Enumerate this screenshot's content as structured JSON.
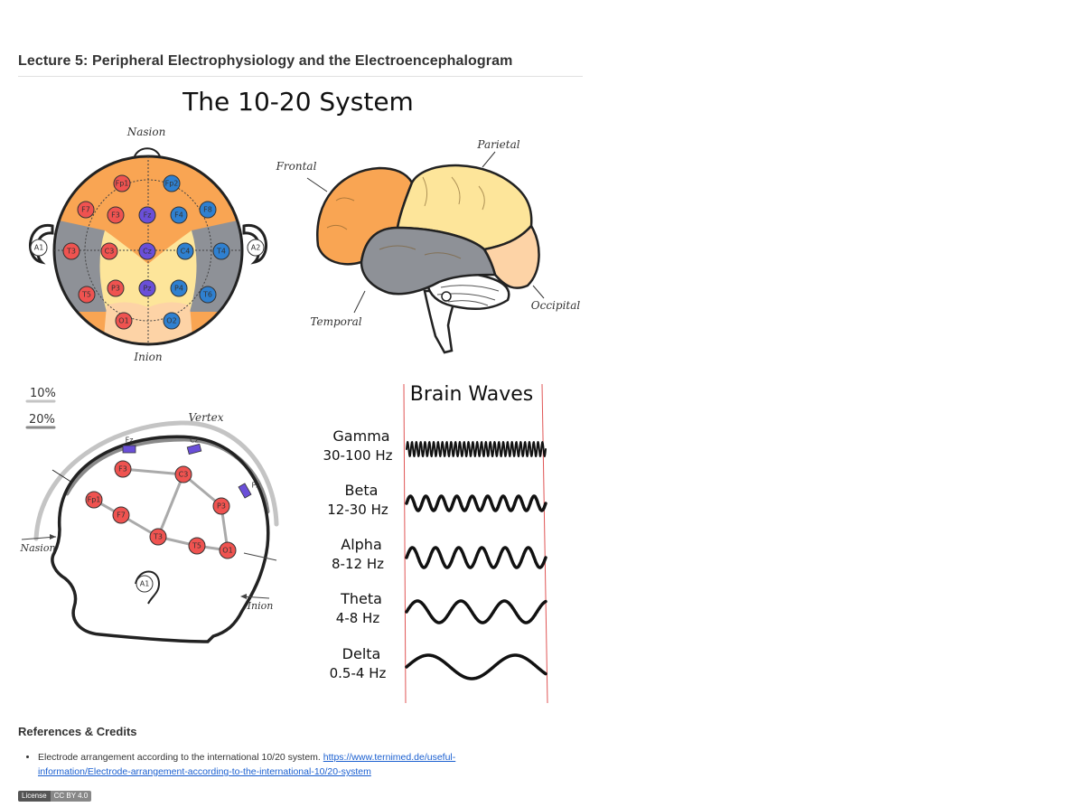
{
  "header": {
    "title": "Lecture 5: Peripheral Electrophysiology and the Electroencephalogram"
  },
  "figure": {
    "title": "The 10-20 System",
    "top_view": {
      "nasion_label": "Nasion",
      "inion_label": "Inion",
      "electrodes": [
        {
          "id": "Fp1",
          "side": "left"
        },
        {
          "id": "Fp2",
          "side": "right"
        },
        {
          "id": "F7",
          "side": "left"
        },
        {
          "id": "F3",
          "side": "left"
        },
        {
          "id": "Fz",
          "side": "midline"
        },
        {
          "id": "F4",
          "side": "right"
        },
        {
          "id": "F8",
          "side": "right"
        },
        {
          "id": "A1",
          "side": "reference"
        },
        {
          "id": "T3",
          "side": "left"
        },
        {
          "id": "C3",
          "side": "left"
        },
        {
          "id": "Cz",
          "side": "midline"
        },
        {
          "id": "C4",
          "side": "right"
        },
        {
          "id": "T4",
          "side": "right"
        },
        {
          "id": "A2",
          "side": "reference"
        },
        {
          "id": "T5",
          "side": "left"
        },
        {
          "id": "P3",
          "side": "left"
        },
        {
          "id": "Pz",
          "side": "midline"
        },
        {
          "id": "P4",
          "side": "right"
        },
        {
          "id": "T6",
          "side": "right"
        },
        {
          "id": "O1",
          "side": "left"
        },
        {
          "id": "O2",
          "side": "right"
        }
      ]
    },
    "brain_labels": {
      "frontal": "Frontal",
      "parietal": "Parietal",
      "temporal": "Temporal",
      "occipital": "Occipital"
    },
    "scale_legend": [
      "10%",
      "20%"
    ],
    "side_view": {
      "vertex_label": "Vertex",
      "nasion_label": "Nasion",
      "inion_label": "Inion",
      "midline_markers": [
        "Fz",
        "Cz",
        "Pz"
      ],
      "electrodes": [
        "Fp1",
        "F7",
        "F3",
        "C3",
        "P3",
        "T3",
        "T5",
        "O1",
        "A1"
      ]
    },
    "brain_waves": {
      "title": "Brain Waves",
      "waves": [
        {
          "name": "Gamma",
          "range": "30-100 Hz"
        },
        {
          "name": "Beta",
          "range": "12-30 Hz"
        },
        {
          "name": "Alpha",
          "range": "8-12 Hz"
        },
        {
          "name": "Theta",
          "range": "4-8 Hz"
        },
        {
          "name": "Delta",
          "range": "0.5-4 Hz"
        }
      ]
    },
    "colors": {
      "left": "#ef5350",
      "right": "#2f80d0",
      "midline": "#6a4fd8",
      "reference": "#ffffff",
      "frontal": "#f9a553",
      "parietal": "#fde59a",
      "temporal": "#8e9197",
      "occipital": "#fdd3a6",
      "guide_red": "#e05555"
    }
  },
  "references": {
    "heading": "References & Credits",
    "items": [
      {
        "text": "Electrode arrangement according to the international 10/20 system.",
        "link": "https://www.ternimed.de/useful-information/Electrode-arrangement-according-to-the-international-10/20-system"
      }
    ]
  },
  "license": {
    "label": "License",
    "value": "CC BY 4.0"
  }
}
